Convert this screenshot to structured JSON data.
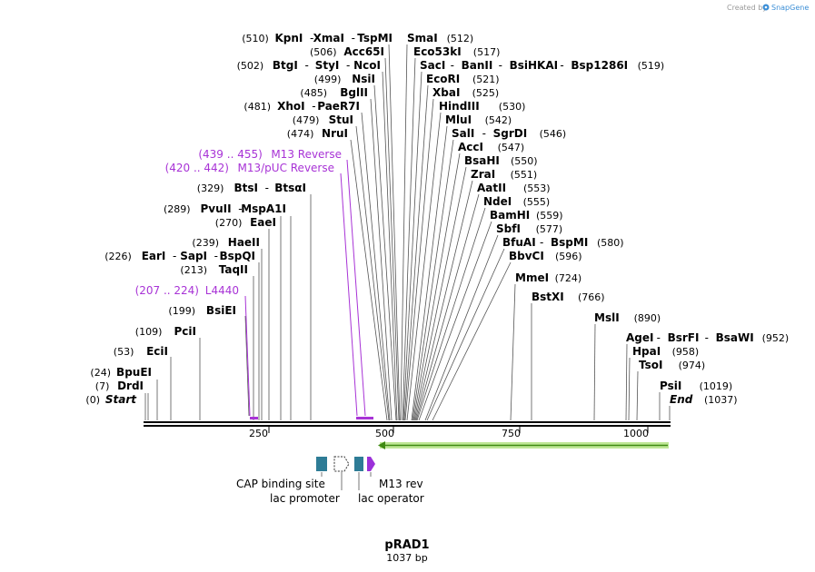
{
  "brand": {
    "prefix": "Created by",
    "name": "SnapGene"
  },
  "plasmid": {
    "name": "pRAD1",
    "length": "1037 bp"
  },
  "ruler": {
    "ticks": [
      "250",
      "500",
      "750",
      "1000"
    ]
  },
  "ends": {
    "start": {
      "pos": "(0)",
      "label": "Start"
    },
    "end": {
      "pos": "(1037)",
      "label": "End"
    }
  },
  "sites": {
    "kpn": {
      "pos": "(510)",
      "names": [
        "KpnI",
        "XmaI",
        "TspMI"
      ]
    },
    "acc65": {
      "pos": "(506)",
      "names": [
        "Acc65I"
      ]
    },
    "btg": {
      "pos": "(502)",
      "names": [
        "BtgI",
        "StyI",
        "NcoI"
      ]
    },
    "nsi": {
      "pos": "(499)",
      "names": [
        "NsiI"
      ]
    },
    "bgl": {
      "pos": "(485)",
      "names": [
        "BglII"
      ]
    },
    "xho": {
      "pos": "(481)",
      "names": [
        "XhoI",
        "PaeR7I"
      ]
    },
    "stu": {
      "pos": "(479)",
      "names": [
        "StuI"
      ]
    },
    "nru": {
      "pos": "(474)",
      "names": [
        "NruI"
      ]
    },
    "bts": {
      "pos": "(329)",
      "names": [
        "BtsI",
        "BtsαI"
      ]
    },
    "pvu": {
      "pos": "(289)",
      "names": [
        "PvuII",
        "MspA1I"
      ]
    },
    "eae": {
      "pos": "(270)",
      "names": [
        "EaeI"
      ]
    },
    "hae": {
      "pos": "(239)",
      "names": [
        "HaeII"
      ]
    },
    "ear": {
      "pos": "(226)",
      "names": [
        "EarI",
        "SapI",
        "BspQI"
      ]
    },
    "taq": {
      "pos": "(213)",
      "names": [
        "TaqII"
      ]
    },
    "bsie": {
      "pos": "(199)",
      "names": [
        "BsiEI"
      ]
    },
    "pci": {
      "pos": "(109)",
      "names": [
        "PciI"
      ]
    },
    "eci": {
      "pos": "(53)",
      "names": [
        "EciI"
      ]
    },
    "bpue": {
      "pos": "(24)",
      "names": [
        "BpuEI"
      ]
    },
    "drd": {
      "pos": "(7)",
      "names": [
        "DrdI"
      ]
    },
    "sma": {
      "pos": "(512)",
      "names": [
        "SmaI"
      ]
    },
    "eco53": {
      "pos": "(517)",
      "names": [
        "Eco53kI"
      ]
    },
    "sac": {
      "pos": "(519)",
      "names": [
        "SacI",
        "BanII",
        "BsiHKAI",
        "Bsp1286I"
      ]
    },
    "ecor": {
      "pos": "(521)",
      "names": [
        "EcoRI"
      ]
    },
    "xba": {
      "pos": "(525)",
      "names": [
        "XbaI"
      ]
    },
    "hind": {
      "pos": "(530)",
      "names": [
        "HindIII"
      ]
    },
    "mlu": {
      "pos": "(542)",
      "names": [
        "MluI"
      ]
    },
    "sal": {
      "pos": "(546)",
      "names": [
        "SalI",
        "SgrDI"
      ]
    },
    "acc": {
      "pos": "(547)",
      "names": [
        "AccI"
      ]
    },
    "bsah": {
      "pos": "(550)",
      "names": [
        "BsaHI"
      ]
    },
    "zra": {
      "pos": "(551)",
      "names": [
        "ZraI"
      ]
    },
    "aat": {
      "pos": "(553)",
      "names": [
        "AatII"
      ]
    },
    "nde": {
      "pos": "(555)",
      "names": [
        "NdeI"
      ]
    },
    "bam": {
      "pos": "(559)",
      "names": [
        "BamHI"
      ]
    },
    "sbf": {
      "pos": "(577)",
      "names": [
        "SbfI"
      ]
    },
    "bfua": {
      "pos": "(580)",
      "names": [
        "BfuAI",
        "BspMI"
      ]
    },
    "bbvc": {
      "pos": "(596)",
      "names": [
        "BbvCI"
      ]
    },
    "mme": {
      "pos": "(724)",
      "names": [
        "MmeI"
      ]
    },
    "bstx": {
      "pos": "(766)",
      "names": [
        "BstXI"
      ]
    },
    "msl": {
      "pos": "(890)",
      "names": [
        "MslI"
      ]
    },
    "age": {
      "pos": "(952)",
      "names": [
        "AgeI",
        "BsrFI",
        "BsaWI"
      ]
    },
    "hpa": {
      "pos": "(958)",
      "names": [
        "HpaI"
      ]
    },
    "tso": {
      "pos": "(974)",
      "names": [
        "TsoI"
      ]
    },
    "psi": {
      "pos": "(1019)",
      "names": [
        "PsiI"
      ]
    }
  },
  "primers": {
    "m13rev": {
      "range": "(439 .. 455)",
      "name": "M13 Reverse"
    },
    "m13puc": {
      "range": "(420 .. 442)",
      "name": "M13/pUC Reverse"
    },
    "l4440": {
      "range": "(207 .. 224)",
      "name": "L4440"
    }
  },
  "features": {
    "cap": "CAP binding site",
    "lacp": "lac promoter",
    "m13rev": "M13 rev",
    "laco": "lac operator"
  },
  "colors": {
    "primer": "#a833d6",
    "feature_teal": "#2e7c96",
    "feature_purple": "#9b30d9",
    "orf_fill": "#bfe796",
    "orf_arrow": "#3f8a12"
  }
}
